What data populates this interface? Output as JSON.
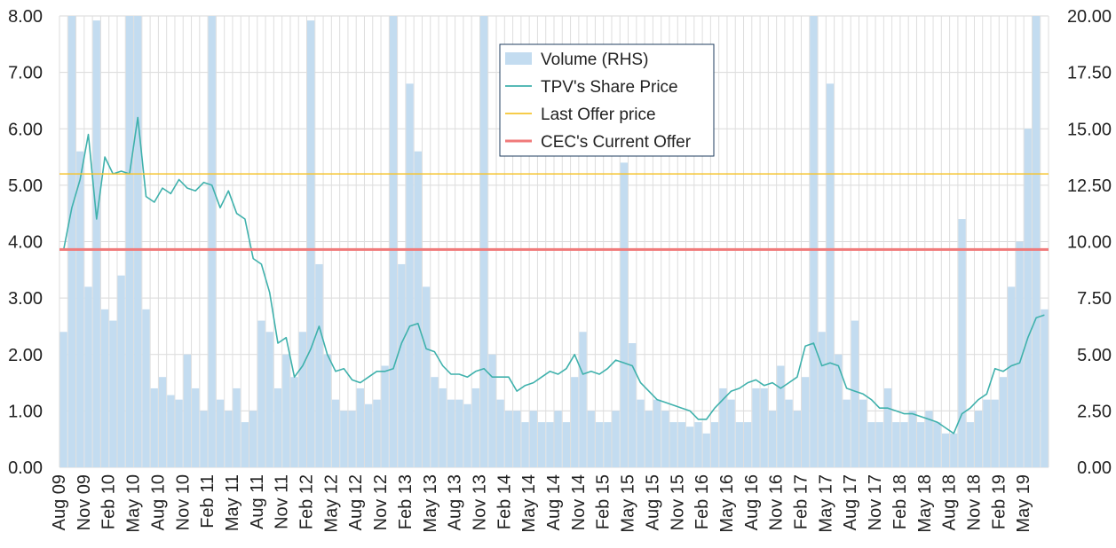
{
  "chart_data": {
    "type": "bar+line",
    "title": "",
    "xlabel": "",
    "ylabel_left": "",
    "ylabel_right": "",
    "y_left": {
      "min": 0,
      "max": 8,
      "ticks": [
        "0.00",
        "1.00",
        "2.00",
        "3.00",
        "4.00",
        "5.00",
        "6.00",
        "7.00",
        "8.00"
      ]
    },
    "y_right": {
      "min": 0,
      "max": 20,
      "ticks": [
        "0.00",
        "2.50",
        "5.00",
        "7.50",
        "10.00",
        "12.50",
        "15.00",
        "17.50",
        "20.00"
      ]
    },
    "grid": true,
    "legend_position": "top-center",
    "x_tick_labels": [
      "Aug 09",
      "Nov 09",
      "Feb 10",
      "May 10",
      "Aug 10",
      "Nov 10",
      "Feb 11",
      "May 11",
      "Aug 11",
      "Nov 11",
      "Feb 12",
      "May 12",
      "Aug 12",
      "Nov 12",
      "Feb 13",
      "May 13",
      "Aug 13",
      "Nov 13",
      "Feb 14",
      "May 14",
      "Aug 14",
      "Nov 14",
      "Feb 15",
      "May 15",
      "Aug 15",
      "Nov 15",
      "Feb 16",
      "May 16",
      "Aug 16",
      "Nov 16",
      "Feb 17",
      "May 17",
      "Aug 17",
      "Nov 17",
      "Feb 18",
      "May 18",
      "Aug 18",
      "Nov 18",
      "Feb 19",
      "May 19"
    ],
    "series": [
      {
        "name": "Volume (RHS)",
        "kind": "bar",
        "axis": "right",
        "color": "#c3dcf0",
        "months": [
          "Aug 09",
          "Sep 09",
          "Oct 09",
          "Nov 09",
          "Dec 09",
          "Jan 10",
          "Feb 10",
          "Mar 10",
          "Apr 10",
          "May 10",
          "Jun 10",
          "Jul 10",
          "Aug 10",
          "Sep 10",
          "Oct 10",
          "Nov 10",
          "Dec 10",
          "Jan 11",
          "Feb 11",
          "Mar 11",
          "Apr 11",
          "May 11",
          "Jun 11",
          "Jul 11",
          "Aug 11",
          "Sep 11",
          "Oct 11",
          "Nov 11",
          "Dec 11",
          "Jan 12",
          "Feb 12",
          "Mar 12",
          "Apr 12",
          "May 12",
          "Jun 12",
          "Jul 12",
          "Aug 12",
          "Sep 12",
          "Oct 12",
          "Nov 12",
          "Dec 12",
          "Jan 13",
          "Feb 13",
          "Mar 13",
          "Apr 13",
          "May 13",
          "Jun 13",
          "Jul 13",
          "Aug 13",
          "Sep 13",
          "Oct 13",
          "Nov 13",
          "Dec 13",
          "Jan 14",
          "Feb 14",
          "Mar 14",
          "Apr 14",
          "May 14",
          "Jun 14",
          "Jul 14",
          "Aug 14",
          "Sep 14",
          "Oct 14",
          "Nov 14",
          "Dec 14",
          "Jan 15",
          "Feb 15",
          "Mar 15",
          "Apr 15",
          "May 15",
          "Jun 15",
          "Jul 15",
          "Aug 15",
          "Sep 15",
          "Oct 15",
          "Nov 15",
          "Dec 15",
          "Jan 16",
          "Feb 16",
          "Mar 16",
          "Apr 16",
          "May 16",
          "Jun 16",
          "Jul 16",
          "Aug 16",
          "Sep 16",
          "Oct 16",
          "Nov 16",
          "Dec 16",
          "Jan 17",
          "Feb 17",
          "Mar 17",
          "Apr 17",
          "May 17",
          "Jun 17",
          "Jul 17",
          "Aug 17",
          "Sep 17",
          "Oct 17",
          "Nov 17",
          "Dec 17",
          "Jan 18",
          "Feb 18",
          "Mar 18",
          "Apr 18",
          "May 18",
          "Jun 18",
          "Jul 18",
          "Aug 18",
          "Sep 18",
          "Oct 18",
          "Nov 18",
          "Dec 18",
          "Jan 19",
          "Feb 19",
          "Mar 19",
          "Apr 19",
          "May 19",
          "Jun 19",
          "Jul 19"
        ],
        "values": [
          6.0,
          20.0,
          14.0,
          8.0,
          19.8,
          7.0,
          6.5,
          8.5,
          20.0,
          20.0,
          7.0,
          3.5,
          4.0,
          3.2,
          3.0,
          5.0,
          3.5,
          2.5,
          20.0,
          3.0,
          2.5,
          3.5,
          2.0,
          2.5,
          6.5,
          6.0,
          3.5,
          5.0,
          4.0,
          6.0,
          19.8,
          9.0,
          5.0,
          3.0,
          2.5,
          2.5,
          3.5,
          2.8,
          3.0,
          4.5,
          20.0,
          9.0,
          17.0,
          14.0,
          8.0,
          4.0,
          3.5,
          3.0,
          3.0,
          2.8,
          3.5,
          20.0,
          5.0,
          3.0,
          2.5,
          2.5,
          2.0,
          2.5,
          2.0,
          2.0,
          2.5,
          2.0,
          4.0,
          6.0,
          2.5,
          2.0,
          2.0,
          2.5,
          13.5,
          5.5,
          3.0,
          2.5,
          3.0,
          2.5,
          2.0,
          2.0,
          1.8,
          2.0,
          1.5,
          2.0,
          3.5,
          3.0,
          2.0,
          2.0,
          3.5,
          3.5,
          2.5,
          4.5,
          3.0,
          2.5,
          4.0,
          20.0,
          6.0,
          17.0,
          5.0,
          3.0,
          6.5,
          3.0,
          2.0,
          2.0,
          3.5,
          2.0,
          2.0,
          2.5,
          2.0,
          2.5,
          2.0,
          1.5,
          1.5,
          11.0,
          2.0,
          2.5,
          3.0,
          3.0,
          4.0,
          8.0,
          10.0,
          15.0,
          20.0,
          7.0
        ]
      },
      {
        "name": "TPV's Share Price",
        "kind": "line",
        "axis": "left",
        "color": "#3fb1ac",
        "x": [
          "Aug 09",
          "Sep 09",
          "Oct 09",
          "Nov 09",
          "Dec 09",
          "Jan 10",
          "Feb 10",
          "Mar 10",
          "Apr 10",
          "May 10",
          "Jun 10",
          "Jul 10",
          "Aug 10",
          "Sep 10",
          "Oct 10",
          "Nov 10",
          "Dec 10",
          "Jan 11",
          "Feb 11",
          "Mar 11",
          "Apr 11",
          "May 11",
          "Jun 11",
          "Jul 11",
          "Aug 11",
          "Sep 11",
          "Oct 11",
          "Nov 11",
          "Dec 11",
          "Jan 12",
          "Feb 12",
          "Mar 12",
          "Apr 12",
          "May 12",
          "Jun 12",
          "Jul 12",
          "Aug 12",
          "Sep 12",
          "Oct 12",
          "Nov 12",
          "Dec 12",
          "Jan 13",
          "Feb 13",
          "Mar 13",
          "Apr 13",
          "May 13",
          "Jun 13",
          "Jul 13",
          "Aug 13",
          "Sep 13",
          "Oct 13",
          "Nov 13",
          "Dec 13",
          "Jan 14",
          "Feb 14",
          "Mar 14",
          "Apr 14",
          "May 14",
          "Jun 14",
          "Jul 14",
          "Aug 14",
          "Sep 14",
          "Oct 14",
          "Nov 14",
          "Dec 14",
          "Jan 15",
          "Feb 15",
          "Mar 15",
          "Apr 15",
          "May 15",
          "Jun 15",
          "Jul 15",
          "Aug 15",
          "Sep 15",
          "Oct 15",
          "Nov 15",
          "Dec 15",
          "Jan 16",
          "Feb 16",
          "Mar 16",
          "Apr 16",
          "May 16",
          "Jun 16",
          "Jul 16",
          "Aug 16",
          "Sep 16",
          "Oct 16",
          "Nov 16",
          "Dec 16",
          "Jan 17",
          "Feb 17",
          "Mar 17",
          "Apr 17",
          "May 17",
          "Jun 17",
          "Jul 17",
          "Aug 17",
          "Sep 17",
          "Oct 17",
          "Nov 17",
          "Dec 17",
          "Jan 18",
          "Feb 18",
          "Mar 18",
          "Apr 18",
          "May 18",
          "Jun 18",
          "Jul 18",
          "Aug 18",
          "Sep 18",
          "Oct 18",
          "Nov 18",
          "Dec 18",
          "Jan 19",
          "Feb 19",
          "Mar 19",
          "Apr 19",
          "May 19",
          "Jun 19",
          "Jul 19"
        ],
        "values": [
          3.85,
          4.6,
          5.1,
          5.9,
          4.4,
          5.5,
          5.2,
          5.25,
          5.2,
          6.2,
          4.8,
          4.7,
          4.95,
          4.85,
          5.1,
          4.95,
          4.9,
          5.05,
          5.0,
          4.6,
          4.9,
          4.5,
          4.4,
          3.7,
          3.6,
          3.1,
          2.2,
          2.3,
          1.6,
          1.8,
          2.1,
          2.5,
          2.0,
          1.7,
          1.75,
          1.55,
          1.5,
          1.6,
          1.7,
          1.7,
          1.75,
          2.2,
          2.5,
          2.55,
          2.1,
          2.05,
          1.8,
          1.65,
          1.65,
          1.6,
          1.7,
          1.75,
          1.6,
          1.6,
          1.6,
          1.35,
          1.45,
          1.5,
          1.6,
          1.7,
          1.65,
          1.75,
          2.0,
          1.65,
          1.7,
          1.65,
          1.75,
          1.9,
          1.85,
          1.8,
          1.5,
          1.35,
          1.2,
          1.15,
          1.1,
          1.05,
          1.0,
          0.85,
          0.85,
          1.05,
          1.2,
          1.35,
          1.4,
          1.5,
          1.55,
          1.45,
          1.5,
          1.4,
          1.5,
          1.6,
          2.15,
          2.2,
          1.8,
          1.85,
          1.8,
          1.4,
          1.35,
          1.3,
          1.2,
          1.05,
          1.05,
          1.0,
          0.95,
          0.95,
          0.9,
          0.85,
          0.8,
          0.7,
          0.6,
          0.95,
          1.05,
          1.2,
          1.3,
          1.75,
          1.7,
          1.8,
          1.85,
          2.3,
          2.65,
          2.7
        ]
      },
      {
        "name": "Last Offer price",
        "kind": "hline",
        "axis": "left",
        "color": "#f5c431",
        "value": 5.2
      },
      {
        "name": "CEC's Current Offer",
        "kind": "hline",
        "axis": "left",
        "color": "#f07a7a",
        "value": 3.86
      }
    ]
  }
}
